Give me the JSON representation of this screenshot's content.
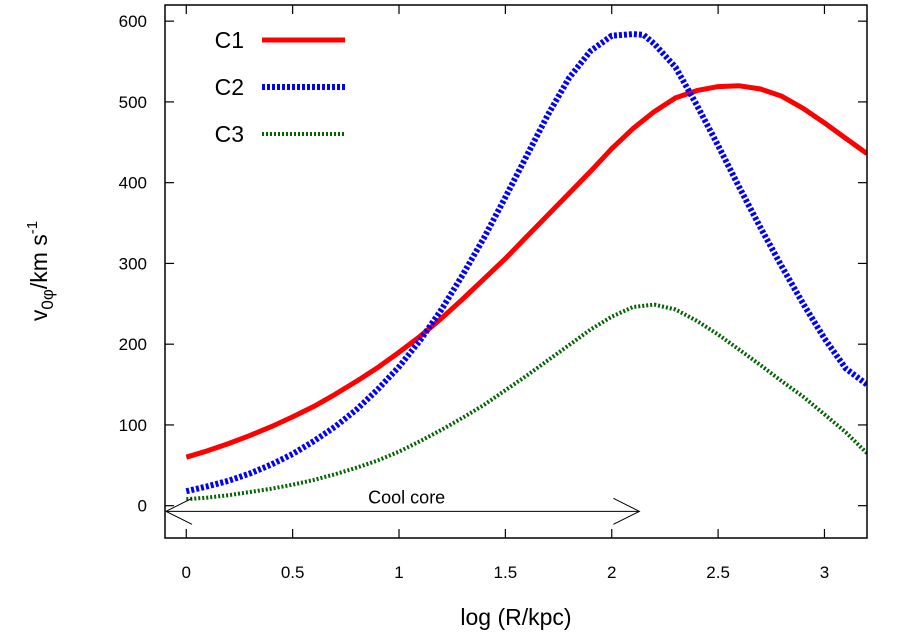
{
  "chart_data": {
    "type": "line",
    "xlabel": "log (R/kpc)",
    "ylabel": {
      "base": "v",
      "sub": "0φ",
      "unit": "/km s",
      "sup": "-1"
    },
    "xlim": [
      -0.1,
      3.2
    ],
    "ylim": [
      -40,
      620
    ],
    "x_ticks": [
      0,
      0.5,
      1,
      1.5,
      2,
      2.5,
      3
    ],
    "x_tick_labels": [
      "0",
      "0.5",
      "1",
      "1.5",
      "2",
      "2.5",
      "3"
    ],
    "y_ticks": [
      0,
      100,
      200,
      300,
      400,
      500,
      600
    ],
    "y_tick_labels": [
      "0",
      "100",
      "200",
      "300",
      "400",
      "500",
      "600"
    ],
    "grid": false,
    "legend_position": "top-left",
    "series": [
      {
        "name": "C1",
        "color": "#ff0000",
        "style": "solid",
        "x": [
          0,
          0.1,
          0.2,
          0.3,
          0.4,
          0.5,
          0.6,
          0.7,
          0.8,
          0.9,
          1.0,
          1.1,
          1.2,
          1.3,
          1.4,
          1.5,
          1.6,
          1.7,
          1.8,
          1.9,
          2.0,
          2.1,
          2.2,
          2.3,
          2.4,
          2.5,
          2.6,
          2.7,
          2.8,
          2.9,
          3.0,
          3.1,
          3.2
        ],
        "values": [
          60,
          68,
          77,
          87,
          98,
          110,
          123,
          138,
          154,
          171,
          190,
          210,
          232,
          256,
          281,
          306,
          333,
          360,
          387,
          414,
          442,
          467,
          488,
          505,
          514,
          519,
          520,
          516,
          507,
          492,
          474,
          455,
          436
        ]
      },
      {
        "name": "C2",
        "color": "#0000ff",
        "style": "dashed",
        "x": [
          0,
          0.1,
          0.2,
          0.3,
          0.4,
          0.5,
          0.6,
          0.7,
          0.8,
          0.9,
          1.0,
          1.1,
          1.2,
          1.3,
          1.4,
          1.5,
          1.6,
          1.7,
          1.8,
          1.9,
          2.0,
          2.1,
          2.15,
          2.2,
          2.3,
          2.4,
          2.5,
          2.6,
          2.7,
          2.8,
          2.9,
          3.0,
          3.1,
          3.2
        ],
        "values": [
          18,
          24,
          31,
          40,
          51,
          64,
          80,
          98,
          119,
          144,
          172,
          205,
          243,
          286,
          332,
          382,
          433,
          484,
          530,
          563,
          582,
          584,
          583,
          572,
          543,
          496,
          446,
          394,
          344,
          296,
          250,
          207,
          170,
          150
        ]
      },
      {
        "name": "C3",
        "color": "#006400",
        "style": "dotted",
        "x": [
          0,
          0.1,
          0.2,
          0.3,
          0.4,
          0.5,
          0.6,
          0.7,
          0.8,
          0.9,
          1.0,
          1.1,
          1.2,
          1.3,
          1.4,
          1.5,
          1.6,
          1.7,
          1.8,
          1.9,
          2.0,
          2.1,
          2.2,
          2.3,
          2.4,
          2.5,
          2.6,
          2.7,
          2.8,
          2.9,
          3.0,
          3.1,
          3.2
        ],
        "values": [
          8,
          10,
          13,
          17,
          21,
          26,
          32,
          39,
          47,
          56,
          67,
          80,
          94,
          109,
          125,
          143,
          161,
          180,
          199,
          218,
          234,
          246,
          249,
          243,
          229,
          212,
          193,
          174,
          154,
          135,
          113,
          91,
          65
        ]
      }
    ],
    "annotations": [
      {
        "type": "double-arrow",
        "text": "Cool core",
        "x_start": -0.1,
        "x_end": 2.13,
        "y": -7
      }
    ]
  }
}
